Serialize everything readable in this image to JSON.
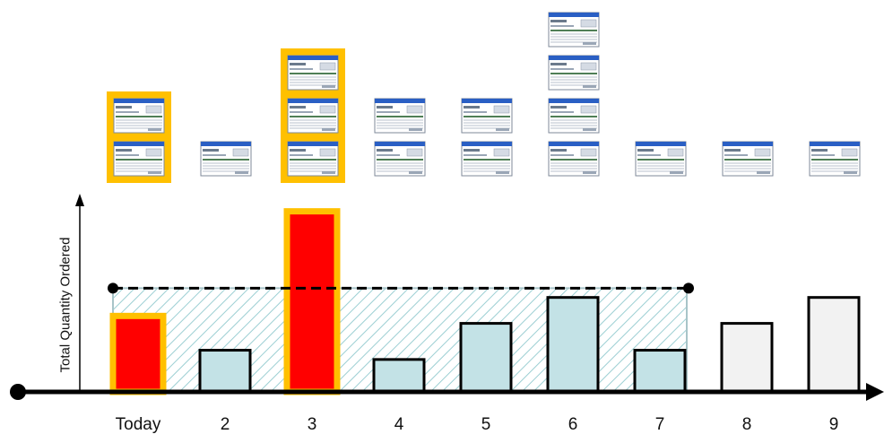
{
  "chart_data": {
    "type": "bar",
    "ylabel": "Total Quantity Ordered",
    "categories": [
      "Today",
      "2",
      "3",
      "4",
      "5",
      "6",
      "7",
      "8",
      "9"
    ],
    "values": [
      82,
      45,
      195,
      35,
      74,
      102,
      45,
      74,
      102
    ],
    "highlighted": [
      true,
      false,
      true,
      false,
      false,
      false,
      false,
      false,
      false
    ],
    "in_window": [
      true,
      true,
      true,
      true,
      true,
      true,
      true,
      false,
      false
    ],
    "order_stacks": [
      2,
      1,
      3,
      2,
      2,
      4,
      1,
      1,
      1
    ],
    "highlighted_stacks": [
      true,
      false,
      true,
      false,
      false,
      false,
      false,
      false,
      false
    ],
    "threshold": 112,
    "threshold_range": [
      "Today",
      "7"
    ],
    "ylim": [
      0,
      215
    ],
    "colors": {
      "highlight_bar": "#ff0000",
      "highlight_border": "#ffc000",
      "window_bar": "#c3e2e6",
      "future_bar": "#f2f2f2",
      "hatch": "#9ccfd3",
      "axis": "#000000"
    }
  }
}
